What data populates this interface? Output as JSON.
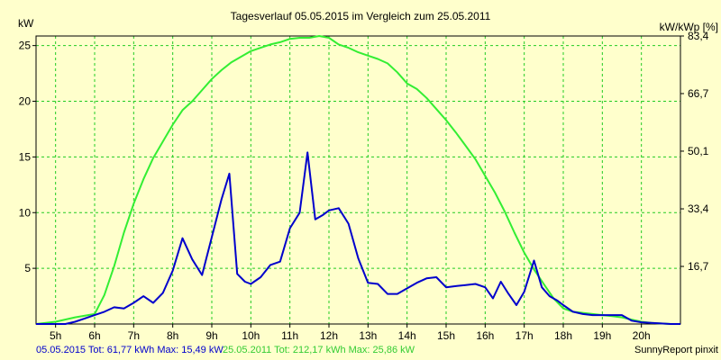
{
  "chart_data": {
    "type": "line",
    "title": "Tagesverlauf 05.05.2015 im Vergleich zum 25.05.2011",
    "ylabel_left": "kW",
    "ylabel_right": "kW/kWp [%]",
    "xlim": [
      4.5,
      21.0
    ],
    "ylim": [
      0,
      25.86
    ],
    "x_ticks": [
      {
        "v": 5,
        "label": "5h"
      },
      {
        "v": 6,
        "label": "6h"
      },
      {
        "v": 7,
        "label": "7h"
      },
      {
        "v": 8,
        "label": "8h"
      },
      {
        "v": 9,
        "label": "9h"
      },
      {
        "v": 10,
        "label": "10h"
      },
      {
        "v": 11,
        "label": "11h"
      },
      {
        "v": 12,
        "label": "12h"
      },
      {
        "v": 13,
        "label": "13h"
      },
      {
        "v": 14,
        "label": "14h"
      },
      {
        "v": 15,
        "label": "15h"
      },
      {
        "v": 16,
        "label": "16h"
      },
      {
        "v": 17,
        "label": "17h"
      },
      {
        "v": 18,
        "label": "18h"
      },
      {
        "v": 19,
        "label": "19h"
      },
      {
        "v": 20,
        "label": "20h"
      }
    ],
    "y_ticks_left": [
      {
        "v": 5,
        "label": "5"
      },
      {
        "v": 10,
        "label": "10"
      },
      {
        "v": 15,
        "label": "15"
      },
      {
        "v": 20,
        "label": "20"
      },
      {
        "v": 25,
        "label": "25"
      }
    ],
    "y_ticks_right": [
      {
        "v": 5.17,
        "label": "16,7"
      },
      {
        "v": 10.34,
        "label": "33,4"
      },
      {
        "v": 15.52,
        "label": "50,1"
      },
      {
        "v": 20.69,
        "label": "66,7"
      },
      {
        "v": 25.86,
        "label": "83,4"
      }
    ],
    "grid": true,
    "colors": {
      "background": "#FFFFCC",
      "grid": "#22CC22",
      "axis": "#000000",
      "series_2015": "#0000CC",
      "series_2011": "#33EE33"
    },
    "series": [
      {
        "name": "05.05.2015",
        "color": "#0000CC",
        "x": [
          4.5,
          5.0,
          5.25,
          5.5,
          5.75,
          6.0,
          6.25,
          6.5,
          6.75,
          7.0,
          7.25,
          7.5,
          7.75,
          8.0,
          8.25,
          8.5,
          8.75,
          9.0,
          9.25,
          9.45,
          9.65,
          9.85,
          10.0,
          10.25,
          10.5,
          10.75,
          11.0,
          11.25,
          11.45,
          11.65,
          11.85,
          12.0,
          12.25,
          12.5,
          12.75,
          13.0,
          13.25,
          13.5,
          13.75,
          14.0,
          14.25,
          14.5,
          14.75,
          15.0,
          15.25,
          15.5,
          15.75,
          16.0,
          16.2,
          16.4,
          16.6,
          16.8,
          17.0,
          17.25,
          17.45,
          17.65,
          17.85,
          18.0,
          18.25,
          18.5,
          18.75,
          19.0,
          19.25,
          19.5,
          19.75,
          20.0,
          20.25,
          20.5,
          20.75,
          21.0
        ],
        "y": [
          0,
          0,
          0,
          0.2,
          0.5,
          0.8,
          1.1,
          1.5,
          1.4,
          1.9,
          2.5,
          1.9,
          2.8,
          4.8,
          7.7,
          5.8,
          4.4,
          7.8,
          11.2,
          13.5,
          4.5,
          3.8,
          3.6,
          4.2,
          5.3,
          5.6,
          8.6,
          10.0,
          15.4,
          9.4,
          9.8,
          10.2,
          10.4,
          9.0,
          5.9,
          3.7,
          3.6,
          2.7,
          2.7,
          3.2,
          3.7,
          4.1,
          4.2,
          3.3,
          3.4,
          3.5,
          3.6,
          3.3,
          2.3,
          3.8,
          2.7,
          1.7,
          2.9,
          5.7,
          3.3,
          2.5,
          2.1,
          1.7,
          1.1,
          0.9,
          0.8,
          0.8,
          0.8,
          0.8,
          0.3,
          0.15,
          0.1,
          0.05,
          0,
          0
        ]
      },
      {
        "name": "25.05.2011",
        "color": "#33EE33",
        "x": [
          4.5,
          5.0,
          5.5,
          6.0,
          6.25,
          6.5,
          6.75,
          7.0,
          7.25,
          7.5,
          7.75,
          8.0,
          8.25,
          8.5,
          8.75,
          9.0,
          9.25,
          9.5,
          9.75,
          10.0,
          10.25,
          10.5,
          10.75,
          11.0,
          11.25,
          11.5,
          11.75,
          12.0,
          12.25,
          12.5,
          12.75,
          13.0,
          13.25,
          13.5,
          13.75,
          14.0,
          14.25,
          14.5,
          14.75,
          15.0,
          15.25,
          15.5,
          15.75,
          16.0,
          16.25,
          16.5,
          16.75,
          17.0,
          17.25,
          17.5,
          17.75,
          18.0,
          18.25,
          18.5,
          18.75,
          19.0,
          19.25,
          19.5,
          19.75,
          20.0,
          20.25,
          20.5,
          20.75,
          21.0
        ],
        "y": [
          0,
          0.2,
          0.6,
          0.9,
          2.6,
          5.2,
          8.2,
          10.8,
          13.0,
          14.9,
          16.4,
          17.9,
          19.2,
          20.0,
          21.0,
          22.0,
          22.8,
          23.5,
          24.0,
          24.5,
          24.8,
          25.1,
          25.3,
          25.6,
          25.7,
          25.7,
          25.86,
          25.7,
          25.1,
          24.8,
          24.4,
          24.1,
          23.8,
          23.4,
          22.6,
          21.6,
          21.1,
          20.3,
          19.3,
          18.3,
          17.2,
          16.0,
          14.8,
          13.3,
          11.8,
          10.1,
          8.2,
          6.4,
          4.9,
          3.6,
          2.3,
          1.4,
          1.1,
          1.0,
          0.9,
          0.8,
          0.7,
          0.6,
          0.4,
          0.2,
          0.1,
          0.05,
          0,
          0
        ]
      }
    ],
    "legend": {
      "text_2015": "05.05.2015 Tot: 61,77 kWh Max: 15,49 kW",
      "text_2011": "25.05.2011 Tot: 212,17 kWh Max: 25,86 kW"
    },
    "footer_right": "SunnyReport pinxit"
  }
}
